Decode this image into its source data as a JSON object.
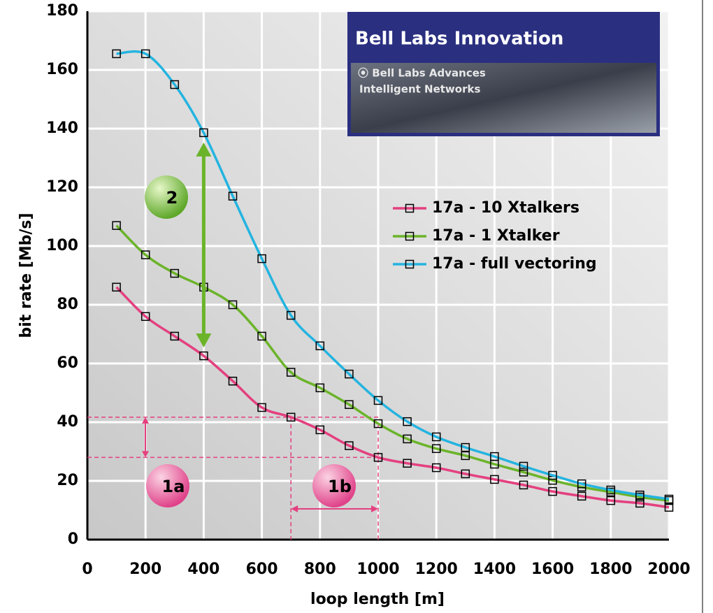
{
  "chart_data": {
    "type": "line",
    "x_label": "loop length [m]",
    "y_label": "bit rate [Mb/s]",
    "x": [
      100,
      200,
      300,
      400,
      500,
      600,
      700,
      800,
      900,
      1000,
      1100,
      1200,
      1300,
      1400,
      1500,
      1600,
      1700,
      1800,
      1900,
      2000
    ],
    "series": [
      {
        "name": "17a - 10 Xtalkers",
        "color": "#e4407f",
        "values": [
          86,
          76,
          69.3,
          62.6,
          54,
          45,
          41.7,
          37.4,
          32,
          28,
          26,
          24.5,
          22.4,
          20.5,
          18.6,
          16.4,
          14.8,
          13.3,
          12.4,
          11
        ]
      },
      {
        "name": "17a - 1 Xtalker",
        "color": "#6bb42a",
        "values": [
          107,
          97,
          90.7,
          86,
          80,
          69.3,
          57,
          51.7,
          46,
          39.5,
          34.3,
          31,
          28.6,
          25.7,
          23,
          20.2,
          17.9,
          16.2,
          14.5,
          13.3
        ]
      },
      {
        "name": "17a - full vectoring",
        "color": "#24b4e0",
        "values": [
          165.5,
          165.5,
          155,
          138.6,
          117,
          95.7,
          76.4,
          66,
          56.4,
          47.4,
          40.2,
          35,
          31.4,
          28.3,
          25,
          21.9,
          19,
          16.9,
          15.2,
          13.8
        ]
      }
    ],
    "xlim": [
      0,
      2000
    ],
    "xticks": [
      0,
      200,
      400,
      600,
      800,
      1000,
      1200,
      1400,
      1600,
      1800,
      2000
    ],
    "ylim": [
      0,
      180
    ],
    "yticks": [
      0,
      20,
      40,
      60,
      80,
      100,
      120,
      140,
      160,
      180
    ],
    "grid": true,
    "annotations": [
      "2",
      "1a",
      "1b"
    ],
    "banner": {
      "title": "Bell Labs Innovation",
      "line1": "⦿ Bell Labs Advances",
      "line2": "Intelligent Networks"
    }
  }
}
